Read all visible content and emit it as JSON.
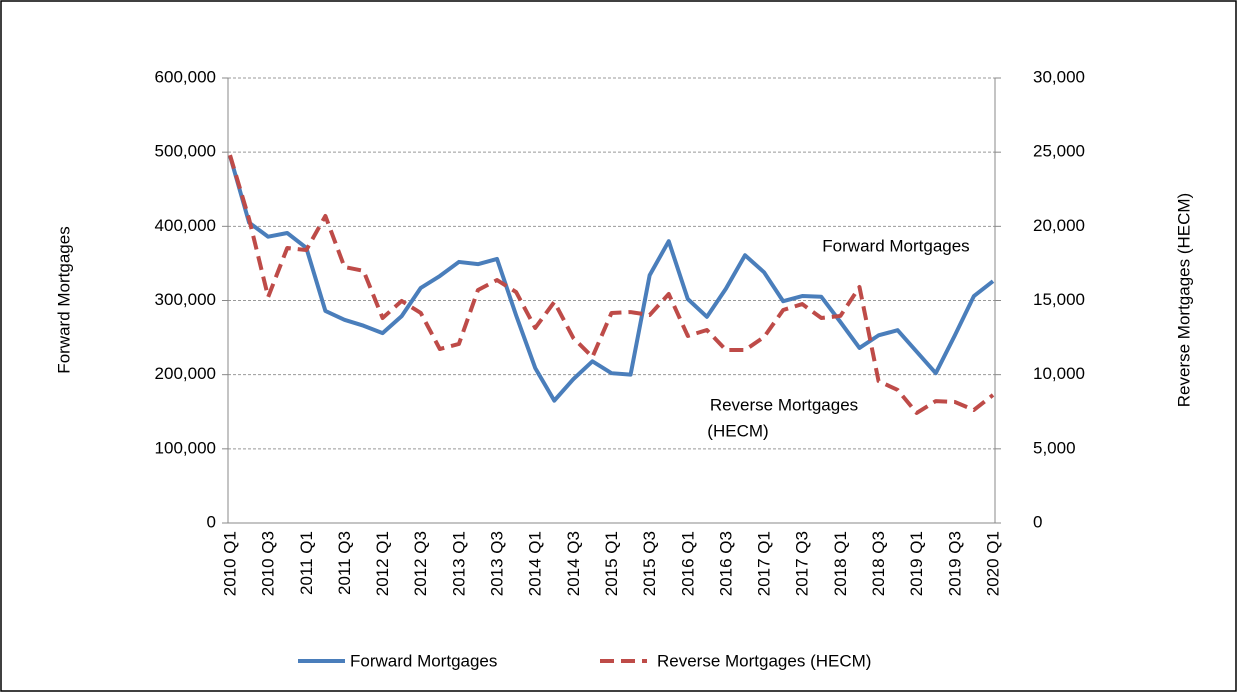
{
  "chart_data": {
    "type": "line",
    "categories": [
      "2010 Q1",
      null,
      "2010 Q3",
      null,
      "2011 Q1",
      null,
      "2011 Q3",
      null,
      "2012 Q1",
      null,
      "2012 Q3",
      null,
      "2013 Q1",
      null,
      "2013 Q3",
      null,
      "2014 Q1",
      null,
      "2014 Q3",
      null,
      "2015 Q1",
      null,
      "2015 Q3",
      null,
      "2016 Q1",
      null,
      "2016 Q3",
      null,
      "2017 Q1",
      null,
      "2017 Q3",
      null,
      "2018 Q1",
      null,
      "2018 Q3",
      null,
      "2019 Q1",
      null,
      "2019 Q3",
      null,
      "2020 Q1"
    ],
    "series": [
      {
        "name": "Forward Mortgages",
        "color": "#4a7ebb",
        "dashed": false,
        "values": [
          495000,
          405000,
          386000,
          391000,
          371000,
          286000,
          274000,
          266000,
          256000,
          279000,
          317000,
          333000,
          352000,
          349000,
          356000,
          280000,
          209000,
          165000,
          194000,
          218000,
          202000,
          200000,
          334000,
          380000,
          302000,
          278000,
          316000,
          361000,
          338000,
          299000,
          306000,
          305000,
          271000,
          236000,
          253000,
          260000,
          231000,
          202000,
          253000,
          306000,
          326000
        ]
      },
      {
        "name": "Reverse Mortgages (HECM)",
        "color": "#be4b48",
        "dashed": true,
        "axis": "y2",
        "values": [
          24800,
          20500,
          15240,
          18540,
          18400,
          20700,
          17260,
          17000,
          13820,
          14970,
          14160,
          11730,
          12070,
          15710,
          16380,
          15570,
          13150,
          14900,
          12470,
          11190,
          14160,
          14220,
          14020,
          15440,
          12610,
          13010,
          11660,
          11660,
          12540,
          14360,
          14760,
          13820,
          13960,
          15910,
          9570,
          8970,
          7420,
          8220,
          8160,
          7620,
          8630
        ]
      }
    ],
    "ylabel": "Forward Mortgages",
    "y2label": "Reverse Mortgages (HECM)",
    "ylim": [
      0,
      600000
    ],
    "yticks": [
      0,
      {
        "value": 100000,
        "label": "100,000"
      },
      {
        "value": 200000,
        "label": "200,000"
      },
      {
        "value": 300000,
        "label": "300,000"
      },
      {
        "value": 400000,
        "label": "400,000"
      },
      {
        "value": 500000,
        "label": "500,000"
      },
      {
        "value": 600000,
        "label": "600,000"
      }
    ],
    "y2lim": [
      0,
      30000
    ],
    "y2ticks": [
      0,
      {
        "value": 5000,
        "label": "5,000"
      },
      {
        "value": 10000,
        "label": "10,000"
      },
      {
        "value": 15000,
        "label": "15,000"
      },
      {
        "value": 20000,
        "label": "20,000"
      },
      {
        "value": 25000,
        "label": "25,000"
      },
      {
        "value": 30000,
        "label": "30,000"
      }
    ],
    "grid": true,
    "legend": "bottom",
    "annotations": [
      {
        "lines": [
          "Forward Mortgages"
        ]
      },
      {
        "lines": [
          "Reverse Mortgages",
          "(HECM)"
        ]
      }
    ]
  }
}
